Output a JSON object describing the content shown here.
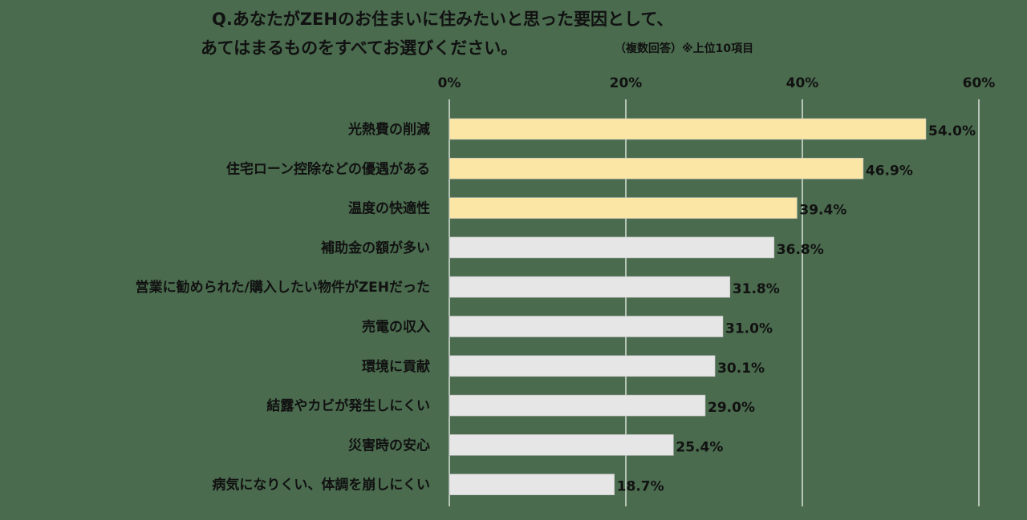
{
  "title": {
    "line1": "Q.あなたがZEHのお住まいに住みたいと思った要因として、",
    "line2": "あてはまるものをすべてお選びください。",
    "note": "（複数回答）※上位10項目"
  },
  "colors": {
    "background": "#4a6b4e",
    "highlight_bar": "#fbe6a6",
    "normal_bar": "#e6e6e6",
    "grid": "#ffffff"
  },
  "chart_data": {
    "type": "bar",
    "orientation": "horizontal",
    "categories": [
      "光熱費の削減",
      "住宅ローン控除などの優遇がある",
      "温度の快適性",
      "補助金の額が多い",
      "営業に勧められた/購入したい物件がZEHだった",
      "売電の収入",
      "環境に貢献",
      "結露やカビが発生しにくい",
      "災害時の安心",
      "病気になりくい、体調を崩しにくい"
    ],
    "values": [
      54.0,
      46.9,
      39.4,
      36.8,
      31.8,
      31.0,
      30.1,
      29.0,
      25.4,
      18.7
    ],
    "value_labels": [
      "54.0%",
      "46.9%",
      "39.4%",
      "36.8%",
      "31.8%",
      "31.0%",
      "30.1%",
      "29.0%",
      "25.4%",
      "18.7%"
    ],
    "highlighted": [
      true,
      true,
      true,
      false,
      false,
      false,
      false,
      false,
      false,
      false
    ],
    "xlim": [
      0,
      60
    ],
    "xticks": [
      0,
      20,
      40,
      60
    ],
    "xtick_labels": [
      "0%",
      "20%",
      "40%",
      "60%"
    ],
    "axis_position": "top",
    "grid": true,
    "legend": "none"
  }
}
